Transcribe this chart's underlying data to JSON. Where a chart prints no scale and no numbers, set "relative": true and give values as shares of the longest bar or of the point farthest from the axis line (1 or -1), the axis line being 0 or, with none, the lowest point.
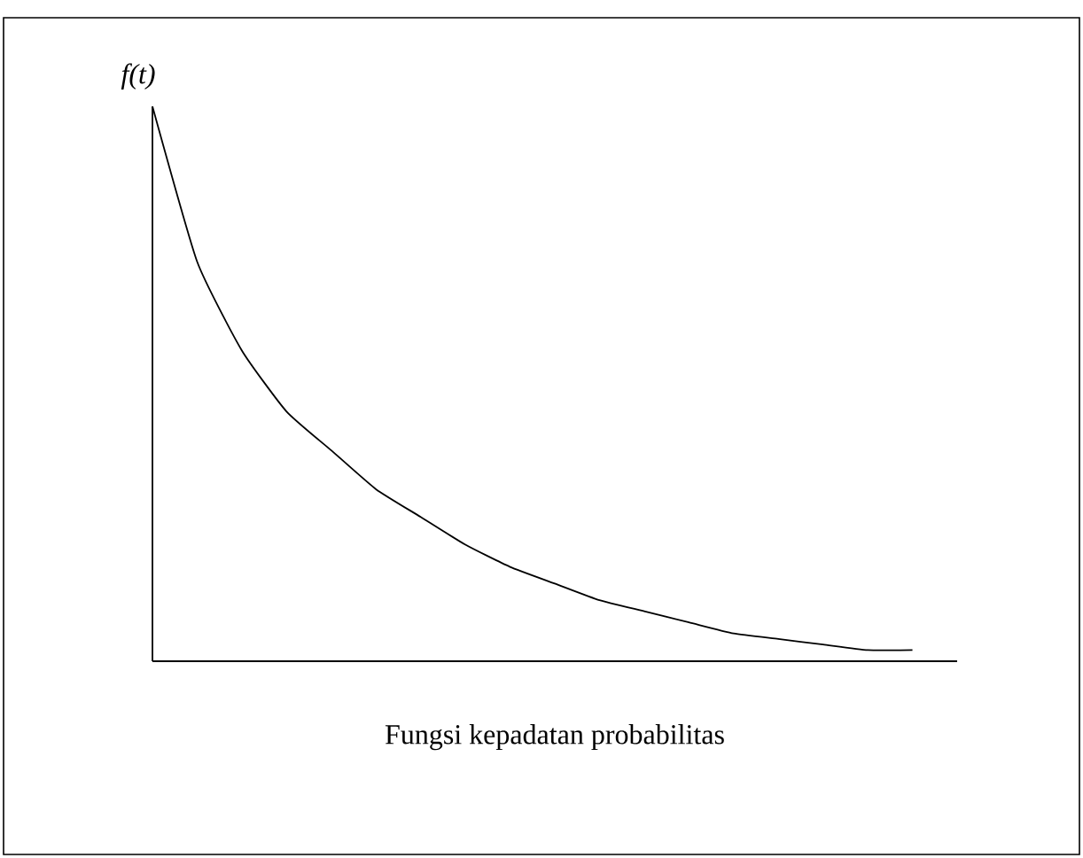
{
  "chart_data": {
    "type": "line",
    "xlabel": "Fungsi kepadatan probabilitas",
    "ylabel": "f(t)",
    "relative": true,
    "categories": [
      null,
      null,
      null,
      null,
      null,
      null,
      null,
      null,
      null,
      null,
      null,
      null,
      null,
      null,
      null,
      null,
      null,
      null,
      null
    ],
    "series": [
      {
        "color": "#000000",
        "values": [
          1.0,
          0.72,
          0.56,
          0.45,
          0.38,
          0.31,
          0.26,
          0.21,
          0.17,
          0.14,
          0.11,
          0.09,
          0.07,
          0.05,
          0.04,
          0.03,
          0.02,
          0.02,
          null
        ]
      }
    ],
    "marker": "none",
    "line_style": "solid"
  }
}
